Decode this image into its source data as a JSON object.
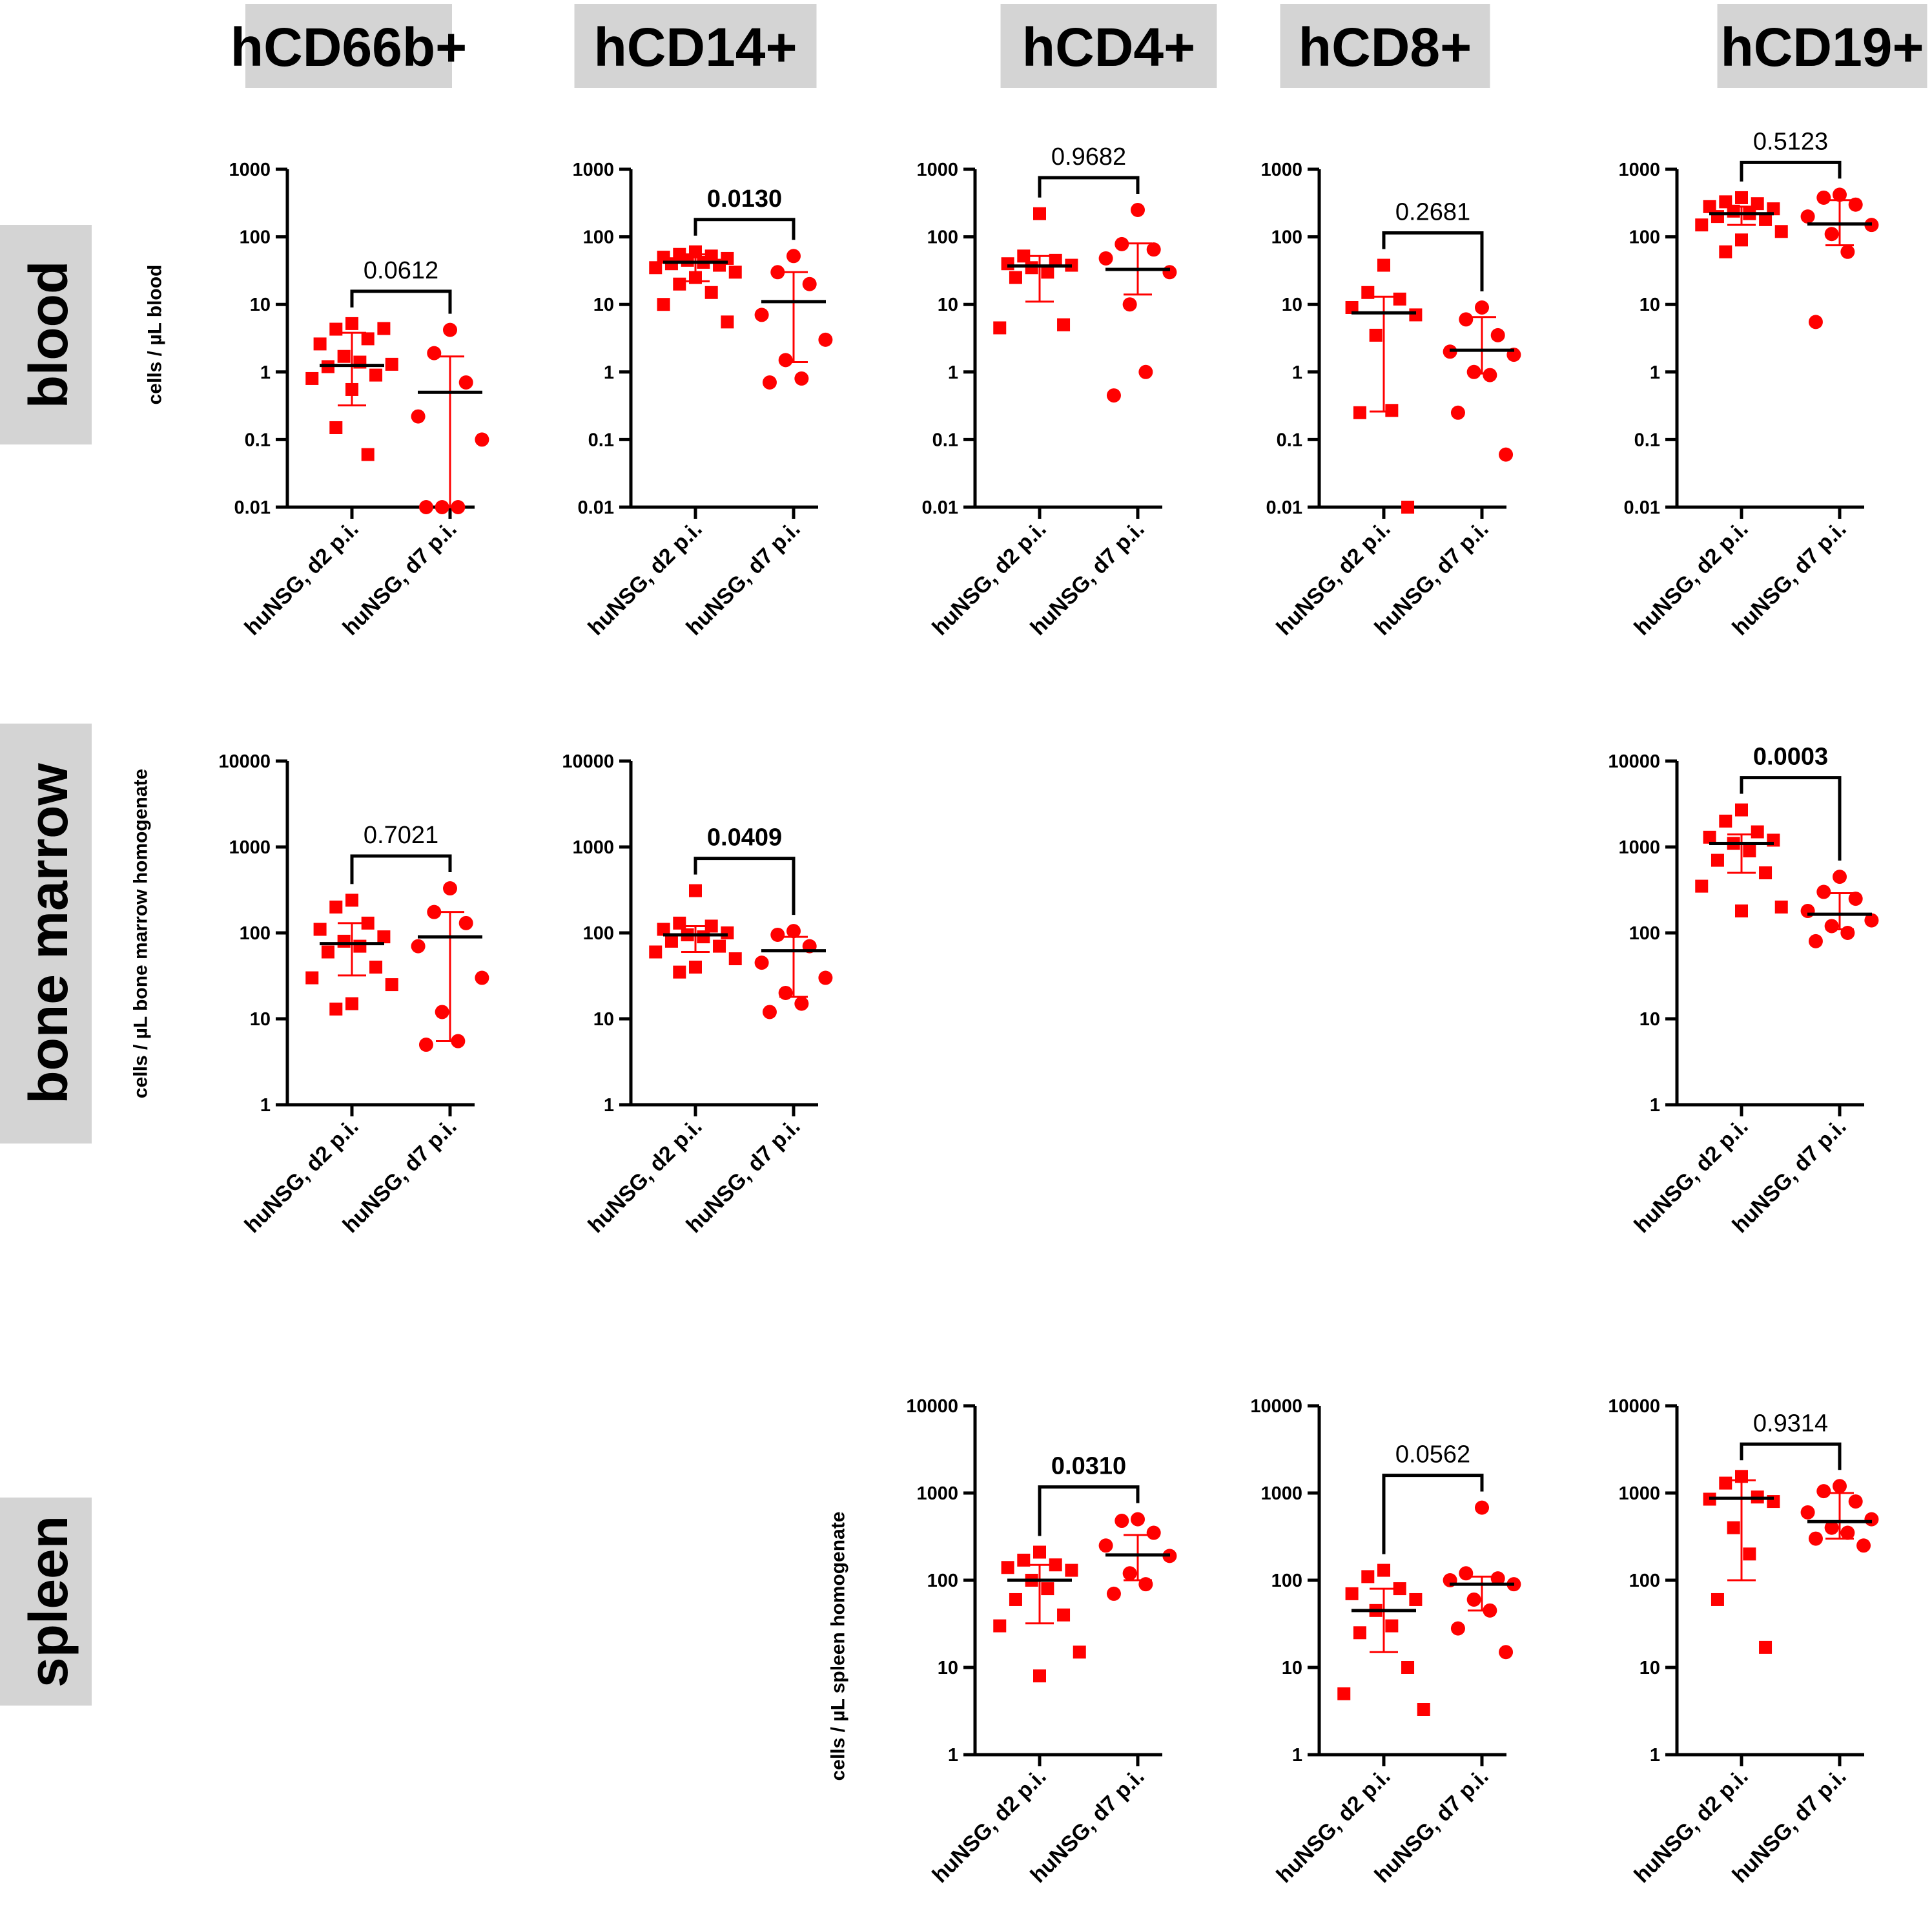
{
  "figure": {
    "columns": [
      "hCD66b+",
      "hCD14+",
      "hCD4+",
      "hCD8+",
      "hCD19+"
    ],
    "rows": [
      "blood",
      "bone marrow",
      "spleen"
    ],
    "y_labels": {
      "blood": "cells / µL blood",
      "bone marrow": "cells / µL bone marrow homogenate",
      "spleen": "cells / µL spleen homogenate"
    },
    "colors": {
      "points": "#ff0000",
      "median": "#000000",
      "box": "#d4d4d4",
      "axis": "#000000"
    }
  },
  "chart_data": [
    {
      "id": "blood-hCD66b",
      "row": "blood",
      "column": "hCD66b+",
      "type": "scatter",
      "yscale": "log",
      "ylim": [
        0.01,
        1000
      ],
      "yticks": [
        "0.01",
        "0.1",
        "1",
        "10",
        "100",
        "1000"
      ],
      "categories": [
        "huNSG, d2 p.i.",
        "huNSG, d7 p.i."
      ],
      "series": [
        {
          "name": "huNSG, d2 p.i.",
          "marker": "square",
          "values": [
            5.2,
            4.3,
            3.1,
            2.6,
            4.4,
            1.7,
            1.4,
            1.2,
            0.9,
            0.8,
            1.3,
            0.55,
            0.15,
            0.06
          ],
          "median": 1.25,
          "iqr": [
            0.32,
            3.8
          ]
        },
        {
          "name": "huNSG, d7 p.i.",
          "marker": "circle",
          "values": [
            4.2,
            1.9,
            0.7,
            0.22,
            0.1,
            0.01,
            0.01,
            0.01
          ],
          "median": 0.5,
          "iqr": [
            0.01,
            1.7
          ]
        }
      ],
      "pvalue": "0.0612",
      "significant": false
    },
    {
      "id": "blood-hCD14",
      "row": "blood",
      "column": "hCD14+",
      "type": "scatter",
      "yscale": "log",
      "ylim": [
        0.01,
        1000
      ],
      "yticks": [
        "0.01",
        "0.1",
        "1",
        "10",
        "100",
        "1000"
      ],
      "categories": [
        "huNSG, d2 p.i.",
        "huNSG, d7 p.i."
      ],
      "series": [
        {
          "name": "huNSG, d2 p.i.",
          "marker": "square",
          "values": [
            60,
            55,
            52,
            50,
            48,
            45,
            42,
            40,
            38,
            35,
            30,
            25,
            20,
            15,
            10,
            5.5
          ],
          "median": 42,
          "iqr": [
            22,
            55
          ]
        },
        {
          "name": "huNSG, d7 p.i.",
          "marker": "circle",
          "values": [
            52,
            30,
            20,
            7,
            3,
            1.5,
            0.8,
            0.7
          ],
          "median": 11,
          "iqr": [
            1.4,
            30
          ]
        }
      ],
      "pvalue": "0.0130",
      "significant": true
    },
    {
      "id": "blood-hCD4",
      "row": "blood",
      "column": "hCD4+",
      "type": "scatter",
      "yscale": "log",
      "ylim": [
        0.01,
        1000
      ],
      "yticks": [
        "0.01",
        "0.1",
        "1",
        "10",
        "100",
        "1000"
      ],
      "categories": [
        "huNSG, d2 p.i.",
        "huNSG, d7 p.i."
      ],
      "series": [
        {
          "name": "huNSG, d2 p.i.",
          "marker": "square",
          "values": [
            220,
            52,
            45,
            40,
            38,
            35,
            30,
            25,
            5,
            4.5
          ],
          "median": 37,
          "iqr": [
            11,
            52
          ]
        },
        {
          "name": "huNSG, d7 p.i.",
          "marker": "circle",
          "values": [
            250,
            78,
            65,
            48,
            30,
            10,
            1,
            0.45
          ],
          "median": 33,
          "iqr": [
            14,
            80
          ]
        }
      ],
      "pvalue": "0.9682",
      "significant": false
    },
    {
      "id": "blood-hCD8",
      "row": "blood",
      "column": "hCD8+",
      "type": "scatter",
      "yscale": "log",
      "ylim": [
        0.01,
        1000
      ],
      "yticks": [
        "0.01",
        "0.1",
        "1",
        "10",
        "100",
        "1000"
      ],
      "categories": [
        "huNSG, d2 p.i.",
        "huNSG, d7 p.i."
      ],
      "series": [
        {
          "name": "huNSG, d2 p.i.",
          "marker": "square",
          "values": [
            38,
            15,
            12,
            9,
            7,
            3.5,
            0.27,
            0.25,
            0.01
          ],
          "median": 7.5,
          "iqr": [
            0.26,
            13
          ]
        },
        {
          "name": "huNSG, d7 p.i.",
          "marker": "circle",
          "values": [
            9,
            6,
            3.5,
            2,
            1.8,
            1,
            0.9,
            0.25,
            0.06
          ],
          "median": 2.1,
          "iqr": [
            0.95,
            6.5
          ]
        }
      ],
      "pvalue": "0.2681",
      "significant": false
    },
    {
      "id": "blood-hCD19",
      "row": "blood",
      "column": "hCD19+",
      "type": "scatter",
      "yscale": "log",
      "ylim": [
        0.01,
        1000
      ],
      "yticks": [
        "0.01",
        "0.1",
        "1",
        "10",
        "100",
        "1000"
      ],
      "categories": [
        "huNSG, d2 p.i.",
        "huNSG, d7 p.i."
      ],
      "series": [
        {
          "name": "huNSG, d2 p.i.",
          "marker": "square",
          "values": [
            380,
            330,
            310,
            280,
            260,
            240,
            220,
            200,
            180,
            150,
            120,
            90,
            60
          ],
          "median": 220,
          "iqr": [
            150,
            280
          ]
        },
        {
          "name": "huNSG, d7 p.i.",
          "marker": "circle",
          "values": [
            420,
            380,
            300,
            200,
            150,
            110,
            60,
            5.5
          ],
          "median": 155,
          "iqr": [
            75,
            350
          ]
        }
      ],
      "pvalue": "0.5123",
      "significant": false
    },
    {
      "id": "bm-hCD66b",
      "row": "bone marrow",
      "column": "hCD66b+",
      "type": "scatter",
      "yscale": "log",
      "ylim": [
        1,
        10000
      ],
      "yticks": [
        "1",
        "10",
        "100",
        "1000",
        "10000"
      ],
      "categories": [
        "huNSG, d2 p.i.",
        "huNSG, d7 p.i."
      ],
      "series": [
        {
          "name": "huNSG, d2 p.i.",
          "marker": "square",
          "values": [
            240,
            200,
            130,
            110,
            90,
            80,
            70,
            60,
            40,
            30,
            25,
            15,
            13
          ],
          "median": 75,
          "iqr": [
            32,
            130
          ]
        },
        {
          "name": "huNSG, d7 p.i.",
          "marker": "circle",
          "values": [
            330,
            175,
            130,
            70,
            30,
            12,
            5.5,
            5
          ],
          "median": 90,
          "iqr": [
            5.5,
            175
          ]
        }
      ],
      "pvalue": "0.7021",
      "significant": false
    },
    {
      "id": "bm-hCD14",
      "row": "bone marrow",
      "column": "hCD14+",
      "type": "scatter",
      "yscale": "log",
      "ylim": [
        1,
        10000
      ],
      "yticks": [
        "1",
        "10",
        "100",
        "1000",
        "10000"
      ],
      "categories": [
        "huNSG, d2 p.i.",
        "huNSG, d7 p.i."
      ],
      "series": [
        {
          "name": "huNSG, d2 p.i.",
          "marker": "square",
          "values": [
            310,
            130,
            120,
            110,
            100,
            95,
            90,
            80,
            70,
            60,
            50,
            40,
            35
          ],
          "median": 95,
          "iqr": [
            60,
            120
          ]
        },
        {
          "name": "huNSG, d7 p.i.",
          "marker": "circle",
          "values": [
            105,
            95,
            70,
            45,
            30,
            20,
            15,
            12
          ],
          "median": 62,
          "iqr": [
            18,
            90
          ]
        }
      ],
      "pvalue": "0.0409",
      "significant": true
    },
    {
      "id": "bm-hCD19",
      "row": "bone marrow",
      "column": "hCD19+",
      "type": "scatter",
      "yscale": "log",
      "ylim": [
        1,
        10000
      ],
      "yticks": [
        "1",
        "10",
        "100",
        "1000",
        "10000"
      ],
      "categories": [
        "huNSG, d2 p.i.",
        "huNSG, d7 p.i."
      ],
      "series": [
        {
          "name": "huNSG, d2 p.i.",
          "marker": "square",
          "values": [
            2700,
            2000,
            1500,
            1300,
            1200,
            1100,
            900,
            700,
            500,
            350,
            200,
            180
          ],
          "median": 1100,
          "iqr": [
            500,
            1400
          ]
        },
        {
          "name": "huNSG, d7 p.i.",
          "marker": "circle",
          "values": [
            450,
            300,
            250,
            180,
            140,
            120,
            100,
            80
          ],
          "median": 165,
          "iqr": [
            110,
            290
          ]
        }
      ],
      "pvalue": "0.0003",
      "significant": true
    },
    {
      "id": "spleen-hCD4",
      "row": "spleen",
      "column": "hCD4+",
      "type": "scatter",
      "yscale": "log",
      "ylim": [
        1,
        10000
      ],
      "yticks": [
        "1",
        "10",
        "100",
        "1000",
        "10000"
      ],
      "categories": [
        "huNSG, d2 p.i.",
        "huNSG, d7 p.i."
      ],
      "series": [
        {
          "name": "huNSG, d2 p.i.",
          "marker": "square",
          "values": [
            210,
            170,
            150,
            140,
            130,
            100,
            80,
            60,
            40,
            30,
            15,
            8
          ],
          "median": 100,
          "iqr": [
            32,
            150
          ]
        },
        {
          "name": "huNSG, d7 p.i.",
          "marker": "circle",
          "values": [
            500,
            480,
            350,
            250,
            190,
            120,
            90,
            70
          ],
          "median": 195,
          "iqr": [
            100,
            330
          ]
        }
      ],
      "pvalue": "0.0310",
      "significant": true
    },
    {
      "id": "spleen-hCD8",
      "row": "spleen",
      "column": "hCD8+",
      "type": "scatter",
      "yscale": "log",
      "ylim": [
        1,
        10000
      ],
      "yticks": [
        "1",
        "10",
        "100",
        "1000",
        "10000"
      ],
      "categories": [
        "huNSG, d2 p.i.",
        "huNSG, d7 p.i."
      ],
      "series": [
        {
          "name": "huNSG, d2 p.i.",
          "marker": "square",
          "values": [
            130,
            110,
            80,
            70,
            60,
            45,
            30,
            25,
            10,
            5,
            3.3
          ],
          "median": 45,
          "iqr": [
            15,
            80
          ]
        },
        {
          "name": "huNSG, d7 p.i.",
          "marker": "circle",
          "values": [
            680,
            120,
            105,
            100,
            90,
            60,
            45,
            28,
            15
          ],
          "median": 90,
          "iqr": [
            45,
            110
          ]
        }
      ],
      "pvalue": "0.0562",
      "significant": false
    },
    {
      "id": "spleen-hCD19",
      "row": "spleen",
      "column": "hCD19+",
      "type": "scatter",
      "yscale": "log",
      "ylim": [
        1,
        10000
      ],
      "yticks": [
        "1",
        "10",
        "100",
        "1000",
        "10000"
      ],
      "categories": [
        "huNSG, d2 p.i.",
        "huNSG, d7 p.i."
      ],
      "series": [
        {
          "name": "huNSG, d2 p.i.",
          "marker": "square",
          "values": [
            1550,
            1300,
            900,
            850,
            800,
            400,
            200,
            60,
            17
          ],
          "median": 870,
          "iqr": [
            100,
            1400
          ]
        },
        {
          "name": "huNSG, d7 p.i.",
          "marker": "circle",
          "values": [
            1200,
            1050,
            800,
            600,
            500,
            400,
            350,
            300,
            250
          ],
          "median": 470,
          "iqr": [
            300,
            1000
          ]
        }
      ],
      "pvalue": "0.9314",
      "significant": false
    }
  ]
}
